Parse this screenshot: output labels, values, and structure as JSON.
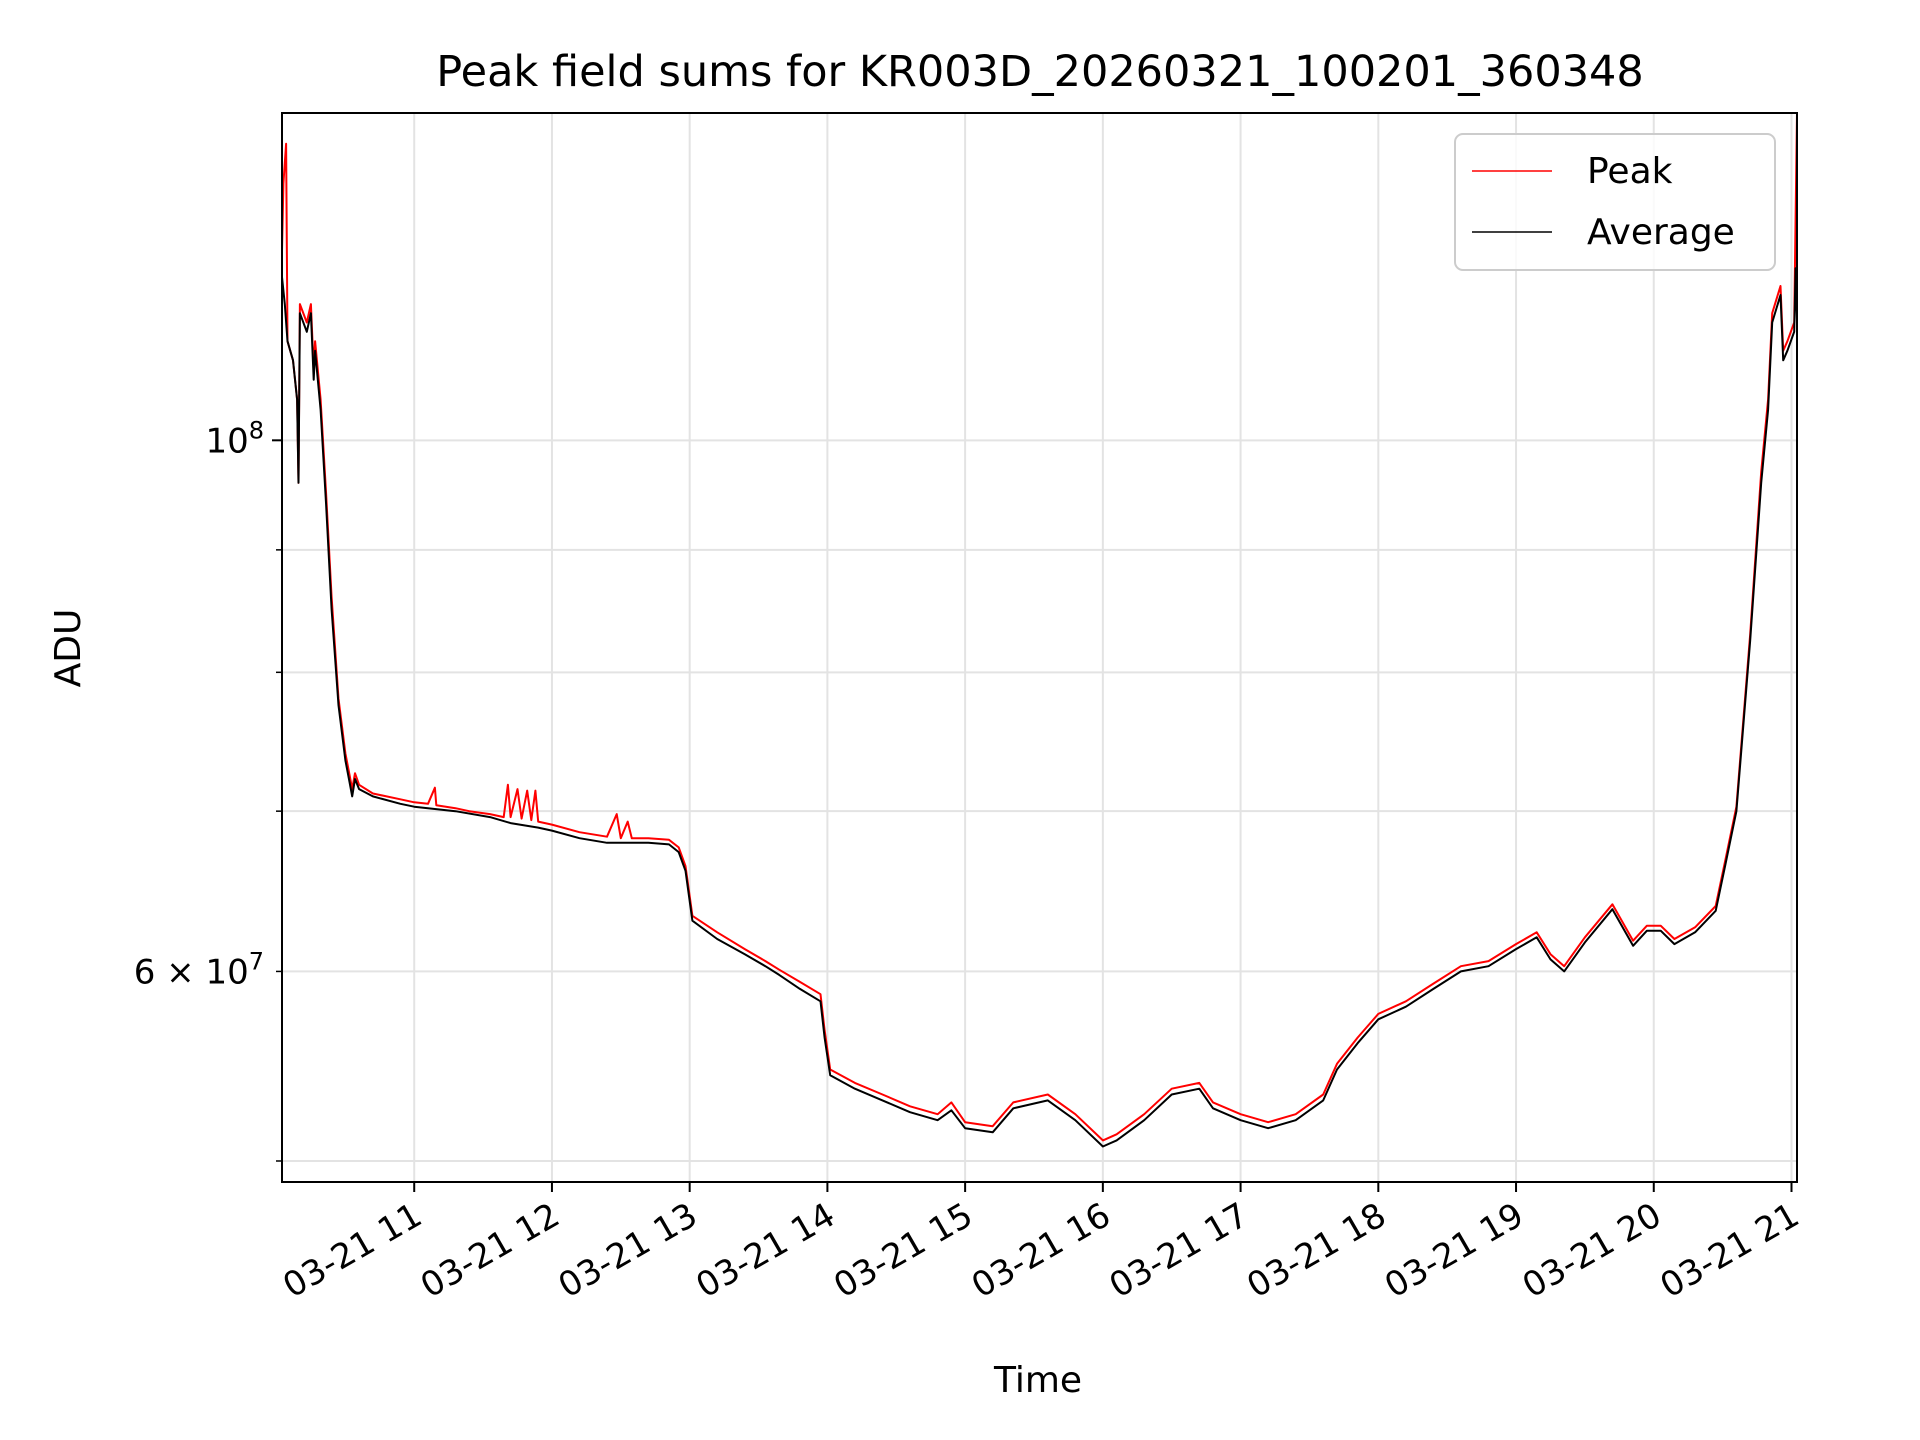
{
  "chart_data": {
    "type": "line",
    "title": "Peak field sums for KR003D_20260321_100201_360348",
    "xlabel": "Time",
    "ylabel": "ADU",
    "yscale": "log",
    "grid": true,
    "legend_location": "upper right",
    "x_unit": "hours since 03-21 10:00",
    "xlim": [
      0.04,
      11.04
    ],
    "ylim": [
      49000000,
      137000000
    ],
    "x_ticks": [
      {
        "value": 1,
        "label": "03-21 11"
      },
      {
        "value": 2,
        "label": "03-21 12"
      },
      {
        "value": 3,
        "label": "03-21 13"
      },
      {
        "value": 4,
        "label": "03-21 14"
      },
      {
        "value": 5,
        "label": "03-21 15"
      },
      {
        "value": 6,
        "label": "03-21 16"
      },
      {
        "value": 7,
        "label": "03-21 17"
      },
      {
        "value": 8,
        "label": "03-21 18"
      },
      {
        "value": 9,
        "label": "03-21 19"
      },
      {
        "value": 10,
        "label": "03-21 20"
      },
      {
        "value": 11,
        "label": "03-21 21"
      }
    ],
    "y_major_ticks": [
      {
        "value": 100000000,
        "base": "10",
        "exp": "8"
      }
    ],
    "y_minor_ticks": [
      {
        "value": 50000000,
        "label": ""
      },
      {
        "value": 60000000,
        "label": "6 × 10",
        "exp": "7"
      },
      {
        "value": 70000000,
        "label": ""
      },
      {
        "value": 80000000,
        "label": ""
      },
      {
        "value": 90000000,
        "label": ""
      }
    ],
    "series": [
      {
        "name": "Peak",
        "color": "#ff0000",
        "points": [
          [
            0.04,
            120000000
          ],
          [
            0.05,
            128000000
          ],
          [
            0.07,
            133000000
          ],
          [
            0.08,
            110000000
          ],
          [
            0.12,
            108000000
          ],
          [
            0.15,
            104000000
          ],
          [
            0.16,
            96000000
          ],
          [
            0.17,
            114000000
          ],
          [
            0.22,
            112000000
          ],
          [
            0.25,
            114000000
          ],
          [
            0.27,
            107000000
          ],
          [
            0.28,
            110000000
          ],
          [
            0.32,
            104000000
          ],
          [
            0.36,
            95000000
          ],
          [
            0.4,
            86000000
          ],
          [
            0.45,
            78000000
          ],
          [
            0.5,
            74000000
          ],
          [
            0.53,
            72500000
          ],
          [
            0.55,
            71500000
          ],
          [
            0.57,
            72600000
          ],
          [
            0.6,
            71800000
          ],
          [
            0.7,
            71200000
          ],
          [
            0.9,
            70800000
          ],
          [
            1.0,
            70600000
          ],
          [
            1.1,
            70500000
          ],
          [
            1.15,
            71600000
          ],
          [
            1.16,
            70400000
          ],
          [
            1.3,
            70200000
          ],
          [
            1.4,
            70000000
          ],
          [
            1.55,
            69800000
          ],
          [
            1.65,
            69600000
          ],
          [
            1.68,
            71800000
          ],
          [
            1.7,
            69600000
          ],
          [
            1.75,
            71500000
          ],
          [
            1.78,
            69500000
          ],
          [
            1.82,
            71400000
          ],
          [
            1.85,
            69400000
          ],
          [
            1.88,
            71400000
          ],
          [
            1.9,
            69300000
          ],
          [
            2.0,
            69100000
          ],
          [
            2.2,
            68600000
          ],
          [
            2.4,
            68300000
          ],
          [
            2.47,
            69800000
          ],
          [
            2.5,
            68200000
          ],
          [
            2.55,
            69300000
          ],
          [
            2.58,
            68200000
          ],
          [
            2.7,
            68200000
          ],
          [
            2.85,
            68100000
          ],
          [
            2.92,
            67600000
          ],
          [
            2.97,
            66400000
          ],
          [
            3.02,
            63300000
          ],
          [
            3.2,
            62300000
          ],
          [
            3.4,
            61300000
          ],
          [
            3.55,
            60600000
          ],
          [
            3.65,
            60100000
          ],
          [
            3.8,
            59400000
          ],
          [
            3.95,
            58700000
          ],
          [
            3.98,
            56700000
          ],
          [
            4.02,
            54600000
          ],
          [
            4.2,
            53900000
          ],
          [
            4.4,
            53300000
          ],
          [
            4.6,
            52700000
          ],
          [
            4.8,
            52300000
          ],
          [
            4.9,
            52900000
          ],
          [
            5.0,
            51900000
          ],
          [
            5.2,
            51700000
          ],
          [
            5.35,
            52900000
          ],
          [
            5.6,
            53300000
          ],
          [
            5.8,
            52300000
          ],
          [
            6.0,
            51000000
          ],
          [
            6.1,
            51300000
          ],
          [
            6.3,
            52300000
          ],
          [
            6.5,
            53600000
          ],
          [
            6.7,
            53900000
          ],
          [
            6.8,
            52900000
          ],
          [
            7.0,
            52300000
          ],
          [
            7.2,
            51900000
          ],
          [
            7.4,
            52300000
          ],
          [
            7.6,
            53300000
          ],
          [
            7.7,
            54900000
          ],
          [
            7.85,
            56300000
          ],
          [
            8.0,
            57600000
          ],
          [
            8.2,
            58300000
          ],
          [
            8.4,
            59300000
          ],
          [
            8.6,
            60300000
          ],
          [
            8.8,
            60600000
          ],
          [
            9.0,
            61600000
          ],
          [
            9.15,
            62300000
          ],
          [
            9.25,
            61000000
          ],
          [
            9.35,
            60300000
          ],
          [
            9.5,
            62000000
          ],
          [
            9.7,
            64000000
          ],
          [
            9.85,
            61800000
          ],
          [
            9.95,
            62700000
          ],
          [
            10.05,
            62700000
          ],
          [
            10.15,
            61900000
          ],
          [
            10.3,
            62600000
          ],
          [
            10.45,
            63900000
          ],
          [
            10.52,
            66800000
          ],
          [
            10.6,
            70300000
          ],
          [
            10.7,
            83000000
          ],
          [
            10.78,
            97000000
          ],
          [
            10.83,
            104000000
          ],
          [
            10.86,
            113000000
          ],
          [
            10.92,
            116000000
          ],
          [
            10.94,
            109000000
          ],
          [
            10.97,
            110000000
          ],
          [
            11.02,
            112000000
          ],
          [
            11.04,
            137000000
          ]
        ]
      },
      {
        "name": "Average",
        "color": "#000000",
        "points": [
          [
            0.04,
            117000000
          ],
          [
            0.06,
            114000000
          ],
          [
            0.08,
            110000000
          ],
          [
            0.12,
            108000000
          ],
          [
            0.15,
            104000000
          ],
          [
            0.16,
            96000000
          ],
          [
            0.17,
            113000000
          ],
          [
            0.22,
            111000000
          ],
          [
            0.25,
            113000000
          ],
          [
            0.27,
            106000000
          ],
          [
            0.28,
            109000000
          ],
          [
            0.32,
            103000000
          ],
          [
            0.36,
            94000000
          ],
          [
            0.4,
            85000000
          ],
          [
            0.45,
            77500000
          ],
          [
            0.5,
            73500000
          ],
          [
            0.53,
            72000000
          ],
          [
            0.55,
            71000000
          ],
          [
            0.57,
            72200000
          ],
          [
            0.6,
            71500000
          ],
          [
            0.7,
            71000000
          ],
          [
            0.9,
            70500000
          ],
          [
            1.0,
            70300000
          ],
          [
            1.3,
            70000000
          ],
          [
            1.55,
            69600000
          ],
          [
            1.7,
            69200000
          ],
          [
            1.9,
            68900000
          ],
          [
            2.0,
            68700000
          ],
          [
            2.2,
            68200000
          ],
          [
            2.4,
            67900000
          ],
          [
            2.7,
            67900000
          ],
          [
            2.85,
            67800000
          ],
          [
            2.92,
            67300000
          ],
          [
            2.97,
            66100000
          ],
          [
            3.02,
            63000000
          ],
          [
            3.2,
            61900000
          ],
          [
            3.4,
            61000000
          ],
          [
            3.55,
            60300000
          ],
          [
            3.65,
            59800000
          ],
          [
            3.8,
            59000000
          ],
          [
            3.95,
            58300000
          ],
          [
            3.98,
            56300000
          ],
          [
            4.02,
            54300000
          ],
          [
            4.2,
            53600000
          ],
          [
            4.4,
            53000000
          ],
          [
            4.6,
            52400000
          ],
          [
            4.8,
            52000000
          ],
          [
            4.9,
            52500000
          ],
          [
            5.0,
            51600000
          ],
          [
            5.2,
            51400000
          ],
          [
            5.35,
            52600000
          ],
          [
            5.6,
            53000000
          ],
          [
            5.8,
            52000000
          ],
          [
            6.0,
            50700000
          ],
          [
            6.1,
            51000000
          ],
          [
            6.3,
            52000000
          ],
          [
            6.5,
            53300000
          ],
          [
            6.7,
            53600000
          ],
          [
            6.8,
            52600000
          ],
          [
            7.0,
            52000000
          ],
          [
            7.2,
            51600000
          ],
          [
            7.4,
            52000000
          ],
          [
            7.6,
            53000000
          ],
          [
            7.7,
            54600000
          ],
          [
            7.85,
            56000000
          ],
          [
            8.0,
            57300000
          ],
          [
            8.2,
            58000000
          ],
          [
            8.4,
            59000000
          ],
          [
            8.6,
            60000000
          ],
          [
            8.8,
            60300000
          ],
          [
            9.0,
            61300000
          ],
          [
            9.15,
            62000000
          ],
          [
            9.25,
            60700000
          ],
          [
            9.35,
            60000000
          ],
          [
            9.5,
            61700000
          ],
          [
            9.7,
            63700000
          ],
          [
            9.85,
            61500000
          ],
          [
            9.95,
            62400000
          ],
          [
            10.05,
            62400000
          ],
          [
            10.15,
            61600000
          ],
          [
            10.3,
            62300000
          ],
          [
            10.45,
            63600000
          ],
          [
            10.52,
            66500000
          ],
          [
            10.6,
            70000000
          ],
          [
            10.7,
            82500000
          ],
          [
            10.78,
            96000000
          ],
          [
            10.83,
            103000000
          ],
          [
            10.86,
            112000000
          ],
          [
            10.92,
            115000000
          ],
          [
            10.94,
            108000000
          ],
          [
            10.97,
            109000000
          ],
          [
            11.02,
            111000000
          ],
          [
            11.03,
            118000000
          ],
          [
            11.04,
            112000000
          ]
        ]
      }
    ]
  }
}
